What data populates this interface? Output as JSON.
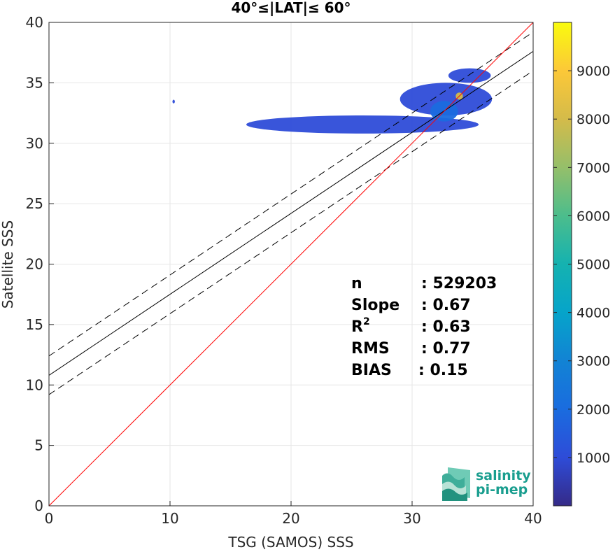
{
  "chart_data": {
    "type": "heatmap",
    "title": "40°≤|LAT|≤ 60°",
    "xlabel": "TSG (SAMOS) SSS",
    "ylabel": "Satellite SSS",
    "xlim": [
      0,
      40
    ],
    "ylim": [
      0,
      40
    ],
    "xticks": [
      "0",
      "10",
      "20",
      "30",
      "40"
    ],
    "yticks": [
      "0",
      "5",
      "10",
      "15",
      "20",
      "25",
      "30",
      "35",
      "40"
    ],
    "grid": true,
    "one_to_one_line": {
      "x": [
        0,
        40
      ],
      "y": [
        0,
        40
      ],
      "color": "#ff0000"
    },
    "fit_line": {
      "x": [
        0,
        40
      ],
      "y": [
        10.8,
        37.6
      ],
      "color": "#000000"
    },
    "upper_bound_line": {
      "x": [
        0,
        40
      ],
      "y": [
        12.4,
        39.2
      ],
      "style": "dashed"
    },
    "lower_bound_line": {
      "x": [
        0,
        40
      ],
      "y": [
        9.2,
        36.0
      ],
      "style": "dashed"
    },
    "density_regions": [
      {
        "x_range": [
          16.3,
          35.5
        ],
        "y_range": [
          30.8,
          32.3
        ],
        "count_level": 600
      },
      {
        "x_range": [
          29.0,
          36.6
        ],
        "y_range": [
          32.3,
          35.0
        ],
        "count_level": 900
      },
      {
        "x_range": [
          33.0,
          36.5
        ],
        "y_range": [
          35.0,
          36.2
        ],
        "count_level": 500
      },
      {
        "x_range": [
          31.5,
          33.8
        ],
        "y_range": [
          31.8,
          33.5
        ],
        "count_level": 2200
      },
      {
        "x_range": [
          33.6,
          34.2
        ],
        "y_range": [
          33.6,
          34.2
        ],
        "count_level": 8200
      },
      {
        "x_range": [
          10.2,
          10.4
        ],
        "y_range": [
          33.3,
          33.6
        ],
        "count_level": 800
      }
    ],
    "stats": [
      {
        "label": "n",
        "value": ": 529203"
      },
      {
        "label": "Slope",
        "value": ": 0.67"
      },
      {
        "label": "R",
        "sup": "2",
        "value": ": 0.63"
      },
      {
        "label": "RMS",
        "value": ": 0.77"
      },
      {
        "label": "BIAS",
        "value": ": 0.15"
      }
    ],
    "colorbar": {
      "colormap": "parula",
      "range": [
        1,
        10000
      ],
      "ticks": [
        "1000",
        "2000",
        "3000",
        "4000",
        "5000",
        "6000",
        "7000",
        "8000",
        "9000"
      ]
    }
  },
  "logo": {
    "line1": "salinity",
    "line2": "pi-mep"
  }
}
